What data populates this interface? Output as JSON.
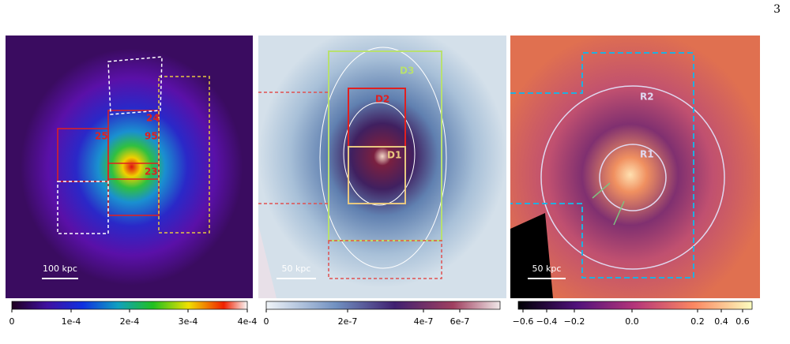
{
  "page_number": "3",
  "panels": [
    {
      "labels": [
        "24",
        "25",
        "95",
        "23"
      ],
      "scale_bar": "100 kpc",
      "colorbar_ticks": [
        "0",
        "1e-4",
        "2e-4",
        "3e-4",
        "4e-4"
      ]
    },
    {
      "labels": [
        "D3",
        "D2",
        "D1"
      ],
      "scale_bar": "50 kpc",
      "colorbar_ticks": [
        "0",
        "2e-7",
        "4e-7",
        "6e-7"
      ]
    },
    {
      "labels": [
        "R2",
        "R1"
      ],
      "scale_bar": "50 kpc",
      "colorbar_ticks": [
        "−0.6",
        "−0.4",
        "−0.2",
        "0.0",
        "0.2",
        "0.4",
        "0.6"
      ]
    }
  ]
}
